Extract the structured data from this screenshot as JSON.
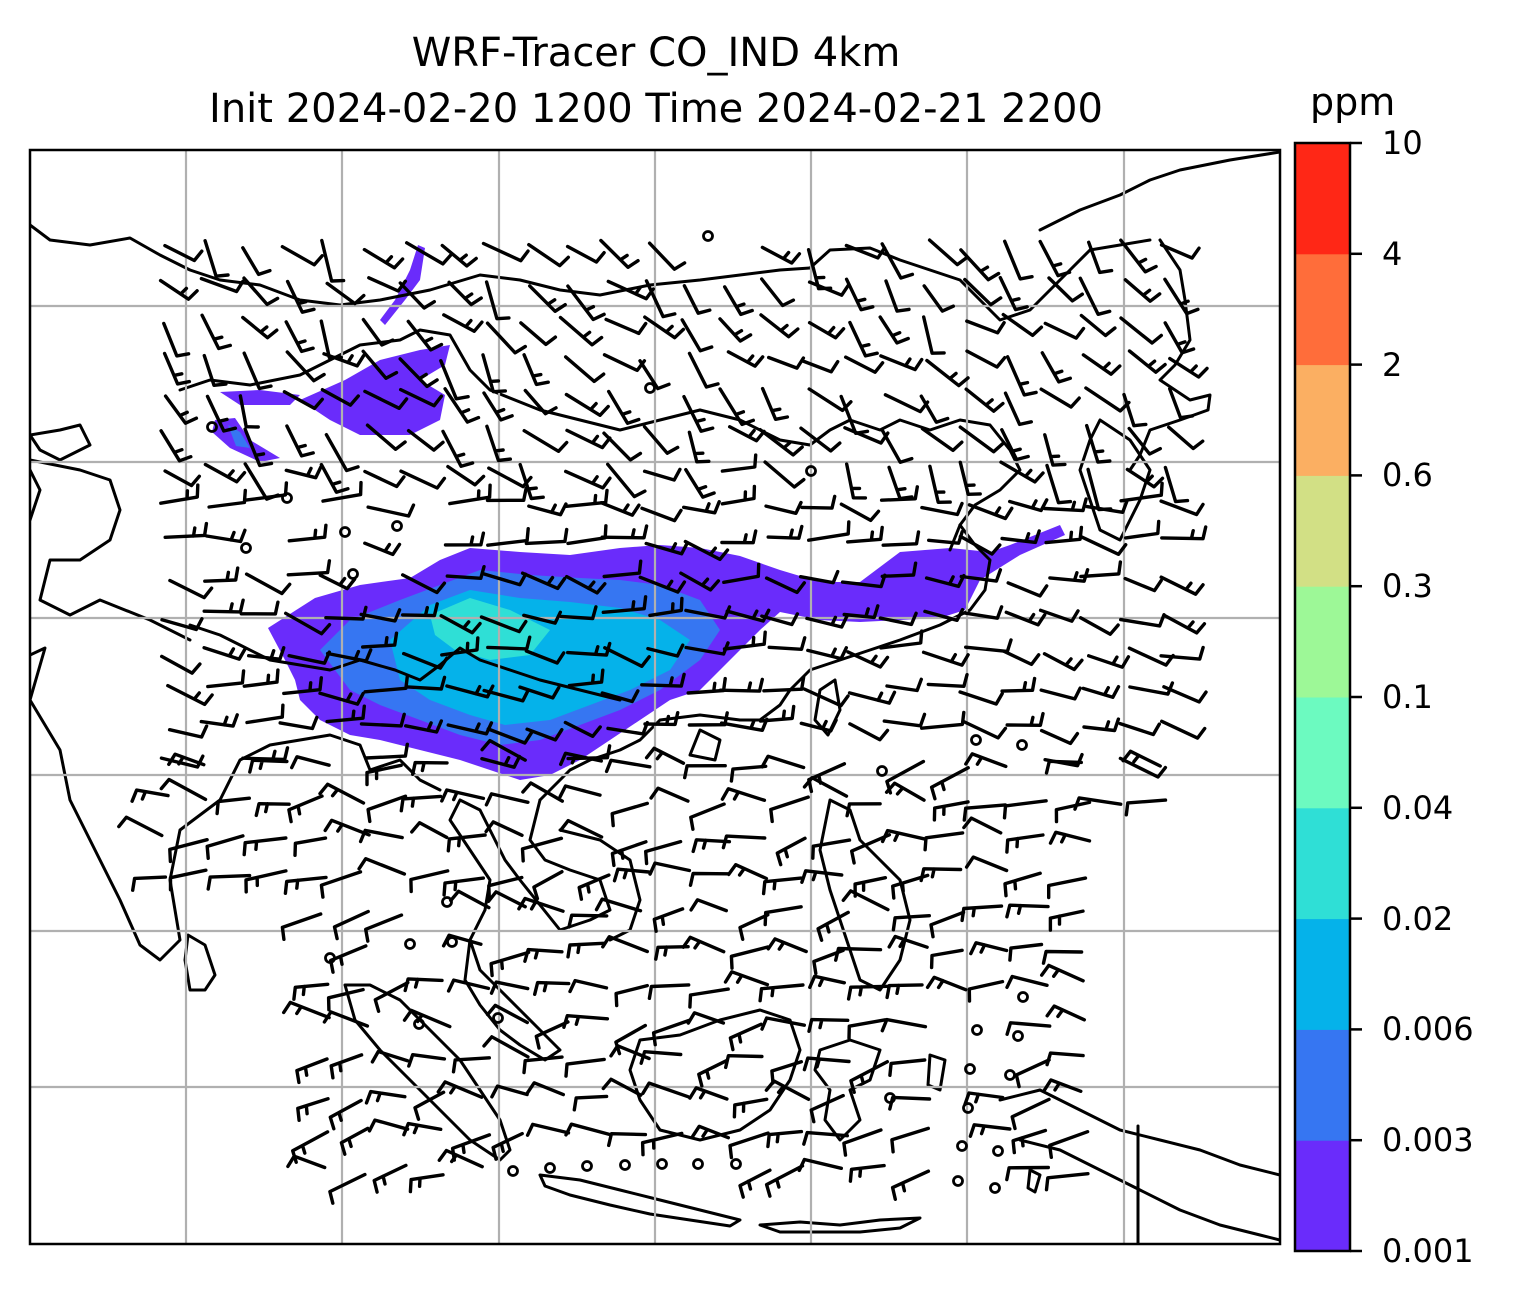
{
  "map": {
    "title_line1": "WRF-Tracer CO_IND 4km",
    "title_line2": "Init 2024-02-20 1200 Time 2024-02-21 2200",
    "variable": "CO_IND tracer concentration",
    "overlay": "wind barbs",
    "gridlines": true,
    "colors": {
      "coastline": "#000000",
      "gridline": "#b0b0b0",
      "barb": "#000000"
    }
  },
  "colorbar": {
    "unit": "ppm",
    "levels": [
      "0.001",
      "0.003",
      "0.006",
      "0.02",
      "0.04",
      "0.1",
      "0.3",
      "0.6",
      "2",
      "4",
      "10"
    ],
    "colors": [
      "#6a2cfb",
      "#3676f2",
      "#05b2ea",
      "#2fdfd6",
      "#6cfac0",
      "#9df897",
      "#d2e085",
      "#fbaf62",
      "#ff6d3a",
      "#ff2716"
    ]
  }
}
